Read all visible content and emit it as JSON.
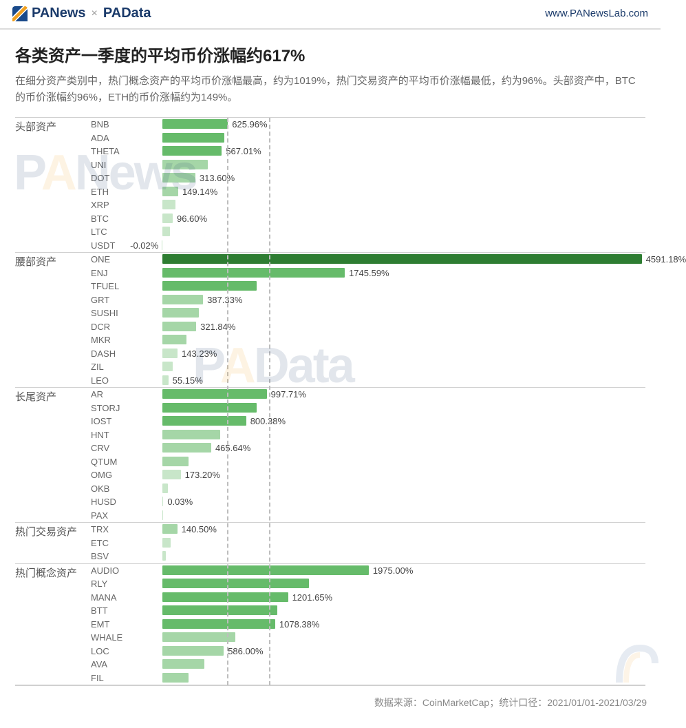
{
  "header": {
    "brand1": "PANews",
    "x": "×",
    "brand2": "PAData",
    "url": "www.PANewsLab.com"
  },
  "title": "各类资产一季度的平均币价涨幅约617%",
  "subtitle": "在细分资产类别中，热门概念资产的平均币价涨幅最高，约为1019%，热门交易资产的平均币价涨幅最低，约为96%。头部资产中，BTC的币价涨幅约96%，ETH的币价涨幅约为149%。",
  "footer": "数据来源：CoinMarketCap；统计口径：2021/01/01-2021/03/29",
  "watermark1": "PANews",
  "watermark2": "PAData",
  "chart": {
    "type": "bar",
    "x_origin_pct": 25,
    "x_max": 4600,
    "grid_positions": [
      617,
      1019
    ],
    "grid_color": "#bdbdbd",
    "bar_colors": {
      "dark": "#2e7d32",
      "mid": "#66bb6a",
      "light": "#a5d6a7",
      "vlight": "#c8e6c9"
    },
    "groups": [
      {
        "label": "头部资产",
        "items": [
          {
            "name": "BNB",
            "value": 625.96,
            "show": "625.96%",
            "shade": "mid"
          },
          {
            "name": "ADA",
            "value": 590,
            "show": "",
            "shade": "mid"
          },
          {
            "name": "THETA",
            "value": 567.01,
            "show": "567.01%",
            "shade": "mid"
          },
          {
            "name": "UNI",
            "value": 430,
            "show": "",
            "shade": "light"
          },
          {
            "name": "DOT",
            "value": 313.6,
            "show": "313.60%",
            "shade": "light"
          },
          {
            "name": "ETH",
            "value": 149.14,
            "show": "149.14%",
            "shade": "light"
          },
          {
            "name": "XRP",
            "value": 120,
            "show": "",
            "shade": "vlight"
          },
          {
            "name": "BTC",
            "value": 96.6,
            "show": "96.60%",
            "shade": "vlight"
          },
          {
            "name": "LTC",
            "value": 70,
            "show": "",
            "shade": "vlight"
          },
          {
            "name": "USDT",
            "value": -0.02,
            "show": "-0.02%",
            "shade": "vlight"
          }
        ]
      },
      {
        "label": "腰部资产",
        "items": [
          {
            "name": "ONE",
            "value": 4591.18,
            "show": "4591.18%",
            "shade": "dark"
          },
          {
            "name": "ENJ",
            "value": 1745.59,
            "show": "1745.59%",
            "shade": "mid"
          },
          {
            "name": "TFUEL",
            "value": 900,
            "show": "",
            "shade": "mid"
          },
          {
            "name": "GRT",
            "value": 387.33,
            "show": "387.33%",
            "shade": "light"
          },
          {
            "name": "SUSHI",
            "value": 350,
            "show": "",
            "shade": "light"
          },
          {
            "name": "DCR",
            "value": 321.84,
            "show": "321.84%",
            "shade": "light"
          },
          {
            "name": "MKR",
            "value": 230,
            "show": "",
            "shade": "light"
          },
          {
            "name": "DASH",
            "value": 143.23,
            "show": "143.23%",
            "shade": "vlight"
          },
          {
            "name": "ZIL",
            "value": 100,
            "show": "",
            "shade": "vlight"
          },
          {
            "name": "LEO",
            "value": 55.15,
            "show": "55.15%",
            "shade": "vlight"
          }
        ]
      },
      {
        "label": "长尾资产",
        "items": [
          {
            "name": "AR",
            "value": 997.71,
            "show": "997.71%",
            "shade": "mid"
          },
          {
            "name": "STORJ",
            "value": 900,
            "show": "",
            "shade": "mid"
          },
          {
            "name": "IOST",
            "value": 800.38,
            "show": "800.38%",
            "shade": "mid"
          },
          {
            "name": "HNT",
            "value": 550,
            "show": "",
            "shade": "light"
          },
          {
            "name": "CRV",
            "value": 465.64,
            "show": "465.64%",
            "shade": "light"
          },
          {
            "name": "QTUM",
            "value": 250,
            "show": "",
            "shade": "light"
          },
          {
            "name": "OMG",
            "value": 173.2,
            "show": "173.20%",
            "shade": "vlight"
          },
          {
            "name": "OKB",
            "value": 50,
            "show": "",
            "shade": "vlight"
          },
          {
            "name": "HUSD",
            "value": 0.03,
            "show": "0.03%",
            "shade": "vlight"
          },
          {
            "name": "PAX",
            "value": 0.01,
            "show": "",
            "shade": "vlight"
          }
        ]
      },
      {
        "label": "热门交易资产",
        "items": [
          {
            "name": "TRX",
            "value": 140.5,
            "show": "140.50%",
            "shade": "light"
          },
          {
            "name": "ETC",
            "value": 80,
            "show": "",
            "shade": "vlight"
          },
          {
            "name": "BSV",
            "value": 30,
            "show": "",
            "shade": "vlight"
          }
        ]
      },
      {
        "label": "热门概念资产",
        "items": [
          {
            "name": "AUDIO",
            "value": 1975.0,
            "show": "1975.00%",
            "shade": "mid"
          },
          {
            "name": "RLY",
            "value": 1400,
            "show": "",
            "shade": "mid"
          },
          {
            "name": "MANA",
            "value": 1201.65,
            "show": "1201.65%",
            "shade": "mid"
          },
          {
            "name": "BTT",
            "value": 1100,
            "show": "",
            "shade": "mid"
          },
          {
            "name": "EMT",
            "value": 1078.38,
            "show": "1078.38%",
            "shade": "mid"
          },
          {
            "name": "WHALE",
            "value": 700,
            "show": "",
            "shade": "light"
          },
          {
            "name": "LOC",
            "value": 586.0,
            "show": "586.00%",
            "shade": "light"
          },
          {
            "name": "AVA",
            "value": 400,
            "show": "",
            "shade": "light"
          },
          {
            "name": "FIL",
            "value": 250,
            "show": "",
            "shade": "light"
          }
        ]
      }
    ]
  }
}
